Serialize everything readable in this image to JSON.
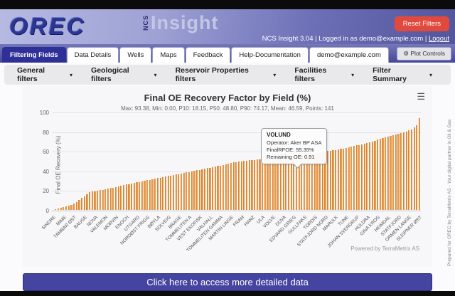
{
  "icons": {
    "gear": "⚙",
    "menu": "☰",
    "caret_down": "▾"
  },
  "header": {
    "logo": "OREC",
    "brand_prefix": "NCS",
    "brand": "Insight",
    "reset_button": "Reset Filters",
    "status_text": "NCS Insight 3.04 | Logged in as demo@example.com | ",
    "logout_label": "Logout"
  },
  "tabs": [
    {
      "label": "Filtering Fields",
      "active": true
    },
    {
      "label": "Data Details",
      "active": false
    },
    {
      "label": "Wells",
      "active": false
    },
    {
      "label": "Maps",
      "active": false
    },
    {
      "label": "Feedback",
      "active": false
    },
    {
      "label": "Help-Documentation",
      "active": false
    },
    {
      "label": "demo@example.com",
      "active": false
    }
  ],
  "plot_controls_label": "Plot Controls",
  "filters": [
    {
      "label": "General filters"
    },
    {
      "label": "Geological filters"
    },
    {
      "label": "Reservoir Properties filters"
    },
    {
      "label": "Facilities filters"
    },
    {
      "label": "Filter Summary"
    }
  ],
  "chart": {
    "title": "Final OE Recovery Factor by Field (%)",
    "subtitle": "Max: 93.38, Min: 0.00, P10: 18.15, P50: 48.80, P90: 74.17, Mean: 46.59, Points: 141",
    "powered_by": "Powered by TerraMetrix AS"
  },
  "tooltip": {
    "title": "VOLUND",
    "lines": [
      "Operator: Aker BP ASA",
      "FinalRFOE: 55.35%",
      "Remaining OE: 0.91"
    ]
  },
  "chart_data": {
    "type": "bar",
    "title": "Final OE Recovery Factor by Field (%)",
    "xlabel": "",
    "ylabel": "Final OE Recovery (%)",
    "ylim": [
      0,
      100
    ],
    "yticks": [
      0,
      20,
      40,
      60,
      80,
      100
    ],
    "grid": true,
    "bar_color": "#ea9c4e",
    "points": 141,
    "tick_step": 4,
    "tick_labels": [
      "SINDRE",
      "MIME",
      "TAMBAR ØST",
      "BAUGE",
      "NOVA",
      "VALEMON",
      "MORVIN",
      "ENOCH",
      "UTGARD",
      "NORDØST FRIGG",
      "BØYLA",
      "SOLVEIG",
      "BRAGE",
      "TOMMELITEN A",
      "VEST EKOFISK",
      "VALHALL",
      "TOMMELITEN GAMMA",
      "MARTIN LINGE",
      "FRAM",
      "HANZ",
      "ULA",
      "VOLVE",
      "DUVA",
      "EDVARD GRIEG",
      "GULLFAKS",
      "TORDIS",
      "STATFJORD NORD",
      "MARULK",
      "TUNE",
      "JOHAN SVERDRUP",
      "HULDRA",
      "GINA KROG",
      "HEIMDAL",
      "STATFJORD",
      "ORMEN LANGE",
      "SLEIPNER ØST"
    ],
    "values": [
      0,
      0.5,
      1.2,
      2,
      2.8,
      3.5,
      4.3,
      5,
      6.5,
      8,
      10,
      12,
      14,
      16,
      18.15,
      18.6,
      19,
      19.5,
      20,
      20.5,
      21,
      21.6,
      22.2,
      22.8,
      23.4,
      24,
      24.6,
      25.2,
      25.8,
      26.4,
      27,
      27.5,
      28.1,
      28.6,
      29.1,
      29.7,
      30.2,
      30.7,
      31.3,
      31.8,
      32.3,
      32.9,
      33.4,
      33.9,
      34.5,
      35,
      35.5,
      36.1,
      36.6,
      37.1,
      37.7,
      38.2,
      38.7,
      39.3,
      39.8,
      40.3,
      40.9,
      41.4,
      41.9,
      42.5,
      43,
      43.6,
      44.2,
      44.7,
      45.3,
      45.9,
      46.5,
      47.1,
      47.6,
      48.2,
      48.8,
      49.1,
      49.4,
      49.8,
      50.1,
      50.4,
      50.7,
      51,
      51.4,
      51.7,
      52,
      52.2,
      52.5,
      52.7,
      53,
      53.2,
      53.4,
      53.7,
      53.9,
      54.1,
      54.4,
      54.6,
      54.9,
      55.1,
      55.35,
      55.8,
      56.2,
      56.6,
      57,
      57.4,
      57.8,
      58.2,
      58.6,
      59,
      59.4,
      59.9,
      60.3,
      60.7,
      61.1,
      61.6,
      62,
      62.6,
      63.2,
      63.8,
      64.4,
      65,
      65.6,
      66.2,
      66.8,
      67.4,
      68,
      68.9,
      69.8,
      70.6,
      71.5,
      72.4,
      73.3,
      74.17,
      74.8,
      75.4,
      76.1,
      76.7,
      77.4,
      78,
      79,
      80,
      81,
      82,
      84,
      86,
      93.38
    ],
    "highlight_index": 94,
    "stats": {
      "max": 93.38,
      "min": 0.0,
      "p10": 18.15,
      "p50": 48.8,
      "p90": 74.17,
      "mean": 46.59,
      "points": 141
    }
  },
  "footer": {
    "button_label": "Click here to access more detailed data"
  },
  "side_note": "Prepared for OREC by TerraMetrix AS - Your digital partner in Oil & Gas"
}
